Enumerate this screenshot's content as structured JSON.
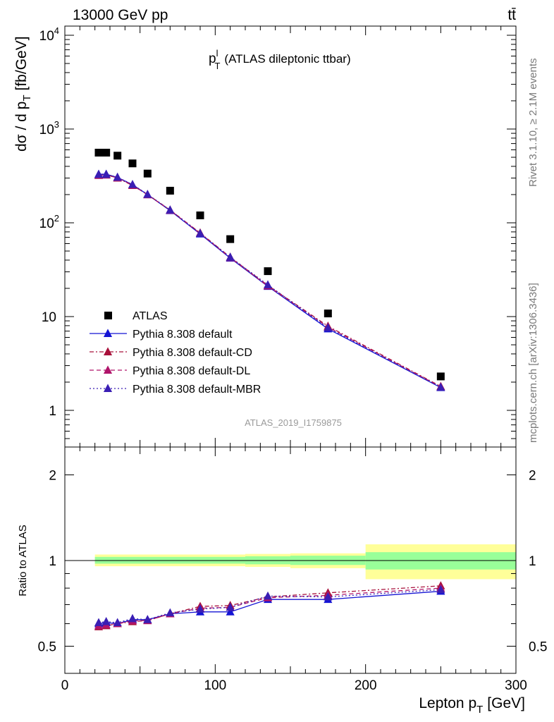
{
  "header": {
    "left_label": "13000 GeV pp",
    "right_label": "tt̄"
  },
  "side_labels": {
    "rivet": "Rivet 3.1.10, ≥ 2.1M events",
    "source": "mcplots.cern.ch [arXiv:1306.3436]"
  },
  "chart_data": [
    {
      "type": "scatter",
      "panel": "main",
      "title": "p_T^l (ATLAS dileptonic ttbar)",
      "title_parts": {
        "p": "p",
        "sup": "l",
        "sub": "T",
        "rest": "(ATLAS dileptonic ttbar)"
      },
      "ylabel": "dσ / d p_T [fb/GeV]",
      "ylabel_parts": {
        "a": "dσ / d p",
        "sub": "T",
        "b": "[fb/GeV]"
      },
      "xlim": [
        0,
        300
      ],
      "ylim": [
        0.4,
        14000
      ],
      "yscale": "log",
      "ytick_labels": [
        "1",
        "10",
        "10^2",
        "10^3",
        "10^4"
      ],
      "watermark": "ATLAS_2019_I1759875",
      "legend_position": "bottom-left",
      "series": [
        {
          "name": "ATLAS",
          "marker": "square",
          "color": "#000000",
          "x": [
            22.5,
            27.5,
            35,
            45,
            55,
            70,
            90,
            110,
            135,
            175,
            250
          ],
          "y": [
            560,
            560,
            520,
            430,
            335,
            220,
            120,
            67,
            30.5,
            10.8,
            2.3
          ]
        },
        {
          "name": "Pythia 8.308 default",
          "marker": "triangle",
          "color": "#1414d4",
          "line": "solid",
          "x": [
            22.5,
            27.5,
            35,
            45,
            55,
            70,
            90,
            110,
            135,
            175,
            250
          ],
          "y": [
            330,
            330,
            305,
            255,
            200,
            135,
            76,
            42,
            21,
            7.4,
            1.75
          ]
        },
        {
          "name": "Pythia 8.308 default-CD",
          "marker": "triangle",
          "color": "#a8103a",
          "line": "dashdot",
          "x": [
            22.5,
            27.5,
            35,
            45,
            55,
            70,
            90,
            110,
            135,
            175,
            250
          ],
          "y": [
            320,
            325,
            300,
            250,
            200,
            137,
            78,
            43,
            21.5,
            7.9,
            1.8
          ]
        },
        {
          "name": "Pythia 8.308 default-DL",
          "marker": "triangle",
          "color": "#b0146a",
          "line": "dashed",
          "x": [
            22.5,
            27.5,
            35,
            45,
            55,
            70,
            90,
            110,
            135,
            175,
            250
          ],
          "y": [
            322,
            323,
            302,
            252,
            199,
            136,
            77,
            42.5,
            21.2,
            7.7,
            1.78
          ]
        },
        {
          "name": "Pythia 8.308 default-MBR",
          "marker": "triangle",
          "color": "#3a1eb4",
          "line": "dotted",
          "x": [
            22.5,
            27.5,
            35,
            45,
            55,
            70,
            90,
            110,
            135,
            175,
            250
          ],
          "y": [
            328,
            328,
            306,
            256,
            201,
            137,
            77,
            43,
            21.8,
            7.6,
            1.76
          ]
        }
      ]
    },
    {
      "type": "line",
      "panel": "ratio",
      "ylabel": "Ratio to ATLAS",
      "xlabel": "Lepton p_T [GeV]",
      "xlabel_parts": {
        "a": "Lepton p",
        "sub": "T",
        "b": "[GeV]"
      },
      "xlim": [
        0,
        300
      ],
      "ylim": [
        0.35,
        2.35
      ],
      "xtick_labels": [
        "0",
        "100",
        "200",
        "300"
      ],
      "ytick_labels": [
        "0.5",
        "1",
        "2"
      ],
      "uncertainty_bands": {
        "bins": [
          [
            20,
            120
          ],
          [
            120,
            150
          ],
          [
            150,
            200
          ],
          [
            200,
            300
          ]
        ],
        "inner": [
          [
            0.975,
            1.03
          ],
          [
            0.97,
            1.035
          ],
          [
            0.965,
            1.04
          ],
          [
            0.93,
            1.07
          ]
        ],
        "outer": [
          [
            0.955,
            1.05
          ],
          [
            0.95,
            1.055
          ],
          [
            0.94,
            1.06
          ],
          [
            0.86,
            1.14
          ]
        ],
        "inner_color": "#99ff99",
        "outer_color": "#ffff99"
      },
      "series": [
        {
          "name": "Pythia 8.308 default",
          "color": "#1414d4",
          "line": "solid",
          "x": [
            22.5,
            27.5,
            35,
            45,
            55,
            70,
            90,
            110,
            135,
            175,
            250
          ],
          "y": [
            0.6,
            0.605,
            0.6,
            0.62,
            0.62,
            0.65,
            0.66,
            0.66,
            0.73,
            0.73,
            0.78
          ]
        },
        {
          "name": "Pythia 8.308 default-CD",
          "color": "#a8103a",
          "line": "dashdot",
          "x": [
            22.5,
            27.5,
            35,
            45,
            55,
            70,
            90,
            110,
            135,
            175,
            250
          ],
          "y": [
            0.585,
            0.59,
            0.6,
            0.61,
            0.615,
            0.65,
            0.69,
            0.695,
            0.745,
            0.77,
            0.815
          ]
        },
        {
          "name": "Pythia 8.308 default-DL",
          "color": "#b0146a",
          "line": "dashed",
          "x": [
            22.5,
            27.5,
            35,
            45,
            55,
            70,
            90,
            110,
            135,
            175,
            250
          ],
          "y": [
            0.59,
            0.595,
            0.6,
            0.615,
            0.615,
            0.65,
            0.68,
            0.685,
            0.74,
            0.755,
            0.8
          ]
        },
        {
          "name": "Pythia 8.308 default-MBR",
          "color": "#3a1eb4",
          "line": "dotted",
          "x": [
            22.5,
            27.5,
            35,
            45,
            55,
            70,
            90,
            110,
            135,
            175,
            250
          ],
          "y": [
            0.605,
            0.61,
            0.605,
            0.625,
            0.62,
            0.655,
            0.675,
            0.685,
            0.75,
            0.745,
            0.79
          ]
        }
      ]
    }
  ]
}
